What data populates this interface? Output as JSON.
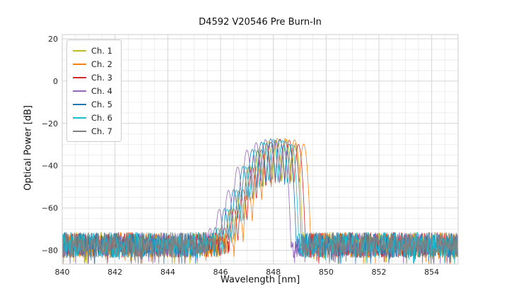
{
  "chart_data": {
    "type": "line",
    "title": "D4592 V20546 Pre Burn-In",
    "xlabel": "Wavelength [nm]",
    "ylabel": "Optical Power [dB]",
    "xlim": [
      840,
      855
    ],
    "ylim": [
      -86.5,
      22
    ],
    "x_tick_values": [
      840,
      842,
      844,
      846,
      848,
      850,
      852,
      854
    ],
    "x_tick_labels": [
      "840",
      "842",
      "844",
      "846",
      "848",
      "850",
      "852",
      "854"
    ],
    "y_tick_values": [
      20,
      0,
      -20,
      -40,
      -60,
      -80
    ],
    "y_tick_labels": [
      "20",
      "0",
      "−20",
      "−40",
      "−60",
      "−80"
    ],
    "x_minor_step_nm": 0.5,
    "y_minor_step_dB": 5,
    "grid": "both",
    "legend_position": "upper left",
    "noise_floor_dB": -77.5,
    "noise_peak_to_peak_dB": 12,
    "lobe_spacing_nm": 0.35,
    "lobe_offsets": [
      -7,
      -6,
      -5,
      -4,
      -3,
      -2,
      -1,
      0,
      1,
      2
    ],
    "lobe_rel_dB": [
      -48,
      -42,
      -33,
      -24,
      -13,
      -5,
      -1.5,
      0,
      -0.5,
      -2.5
    ],
    "lobe_width_nm": 0.11,
    "series": [
      {
        "name": "Ch. 1",
        "color": "#bcbd22",
        "center_nm": 848.15,
        "peak_dB": -27.0
      },
      {
        "name": "Ch. 2",
        "color": "#ff7f0e",
        "center_nm": 848.45,
        "peak_dB": -27.2
      },
      {
        "name": "Ch. 3",
        "color": "#d62728",
        "center_nm": 848.25,
        "peak_dB": -27.4
      },
      {
        "name": "Ch. 4",
        "color": "#9467bd",
        "center_nm": 847.7,
        "peak_dB": -27.6
      },
      {
        "name": "Ch. 5",
        "color": "#1f77b4",
        "center_nm": 847.9,
        "peak_dB": -27.3
      },
      {
        "name": "Ch. 6",
        "color": "#17becf",
        "center_nm": 848.0,
        "peak_dB": -27.5
      },
      {
        "name": "Ch. 7",
        "color": "#7f7f7f",
        "center_nm": 848.1,
        "peak_dB": -27.8
      }
    ],
    "colors": {
      "grid_major": "#d4d4d4",
      "grid_minor": "#e9e9e9",
      "frame": "#cccccc",
      "text": "#262626"
    }
  }
}
